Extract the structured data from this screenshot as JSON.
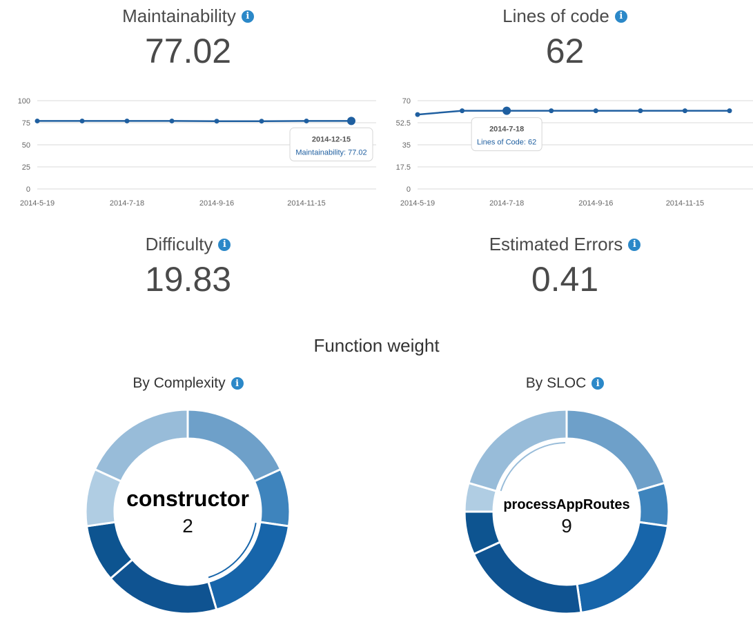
{
  "metrics": {
    "maintainability": {
      "label": "Maintainability",
      "value": "77.02"
    },
    "lines_of_code": {
      "label": "Lines of code",
      "value": "62"
    },
    "difficulty": {
      "label": "Difficulty",
      "value": "19.83"
    },
    "estimated_errors": {
      "label": "Estimated Errors",
      "value": "0.41"
    }
  },
  "function_weight": {
    "title": "Function weight",
    "by_complexity": {
      "label": "By Complexity",
      "center_name": "constructor",
      "center_value": "2"
    },
    "by_sloc": {
      "label": "By SLOC",
      "center_name": "processAppRoutes",
      "center_value": "9"
    }
  },
  "icons": {
    "info": "info-icon"
  },
  "colors": {
    "accent": "#2b88c8",
    "line": "#1f5fa0"
  },
  "chart_data": [
    {
      "type": "line",
      "name": "maintainability-chart",
      "x": [
        "2014-5-19",
        "2014-6-18",
        "2014-7-18",
        "2014-8-17",
        "2014-9-16",
        "2014-10-16",
        "2014-11-15",
        "2014-12-15"
      ],
      "values": [
        77.0,
        77.0,
        77.0,
        77.0,
        76.8,
        76.8,
        77.0,
        77.02
      ],
      "xticks": [
        "2014-5-19",
        "2014-7-18",
        "2014-9-16",
        "2014-11-15"
      ],
      "yticks": [
        "0",
        "25",
        "50",
        "75",
        "100"
      ],
      "ylim": [
        0,
        100
      ],
      "grid": true,
      "tooltip": {
        "index": 7,
        "title": "2014-12-15",
        "text": "Maintainability: 77.02"
      }
    },
    {
      "type": "line",
      "name": "loc-chart",
      "x": [
        "2014-5-19",
        "2014-6-18",
        "2014-7-18",
        "2014-8-17",
        "2014-9-16",
        "2014-10-16",
        "2014-11-15",
        "2014-12-15"
      ],
      "values": [
        59,
        62,
        62,
        62,
        62,
        62,
        62,
        62
      ],
      "xticks": [
        "2014-5-19",
        "2014-7-18",
        "2014-9-16",
        "2014-11-15"
      ],
      "yticks": [
        "0",
        "17.5",
        "35",
        "52.5",
        "70"
      ],
      "ylim": [
        0,
        70
      ],
      "grid": true,
      "tooltip": {
        "index": 2,
        "title": "2014-7-18",
        "text": "Lines of Code: 62"
      }
    },
    {
      "type": "pie",
      "name": "complexity-donut",
      "values": [
        2,
        1,
        2,
        2,
        1,
        1,
        2
      ],
      "colors": [
        "#6ea0c9",
        "#3e84bd",
        "#1765aa",
        "#0f5391",
        "#0d5490",
        "#b0cde3",
        "#98bcd9"
      ],
      "highlight": 2
    },
    {
      "type": "pie",
      "name": "sloc-donut",
      "values": [
        9,
        3,
        9,
        9,
        3,
        2,
        9
      ],
      "colors": [
        "#6ea0c9",
        "#3e84bd",
        "#1765aa",
        "#0f5391",
        "#0d5490",
        "#b0cde3",
        "#98bcd9"
      ],
      "highlight": 6
    }
  ]
}
